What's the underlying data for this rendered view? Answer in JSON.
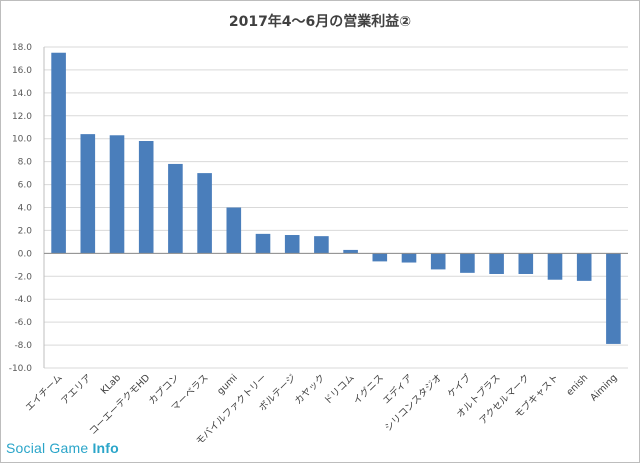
{
  "watermark": {
    "prefix": "Social Game ",
    "suffix": "Info"
  },
  "chart_data": {
    "type": "bar",
    "title": "2017年4～6月の営業利益②",
    "xlabel": "",
    "ylabel": "",
    "ylim": [
      -10,
      18
    ],
    "y_ticks": [
      18.0,
      16.0,
      14.0,
      12.0,
      10.0,
      8.0,
      6.0,
      4.0,
      2.0,
      0.0,
      -2.0,
      -4.0,
      -6.0,
      -8.0,
      -10.0
    ],
    "grid": true,
    "legend": "none",
    "bar_color": "#4a7ebb",
    "categories": [
      "エイチーム",
      "アエリア",
      "KLab",
      "コーエーテクモHD",
      "カプコン",
      "マーベラス",
      "gumi",
      "モバイルファクトリー",
      "ボルテージ",
      "カヤック",
      "ドリコム",
      "イグニス",
      "エディア",
      "シリコンスタジオ",
      "ケイブ",
      "オルトプラス",
      "アクセルマーク",
      "モブキャスト",
      "enish",
      "Aiming"
    ],
    "values": [
      17.5,
      10.4,
      10.3,
      9.8,
      7.8,
      7.0,
      4.0,
      1.7,
      1.6,
      1.5,
      0.3,
      -0.7,
      -0.8,
      -1.4,
      -1.7,
      -1.8,
      -1.8,
      -2.3,
      -2.4,
      -7.9
    ]
  }
}
